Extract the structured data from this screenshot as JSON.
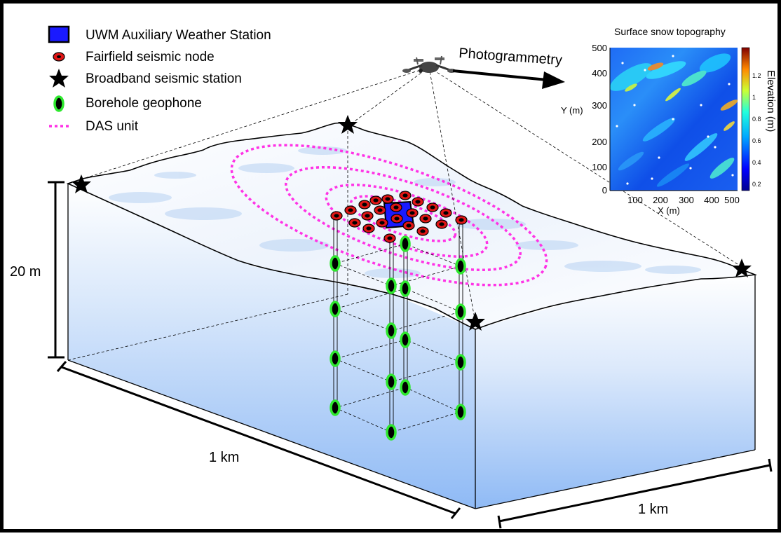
{
  "legend": {
    "items": [
      {
        "key": "weather_station",
        "label": "UWM Auxiliary Weather Station",
        "icon": "blue-square-icon",
        "color": "#1a1aff"
      },
      {
        "key": "seismic_node",
        "label": "Fairfield seismic node",
        "icon": "red-oval-icon",
        "color": "#e01515"
      },
      {
        "key": "broadband",
        "label": "Broadband seismic station",
        "icon": "black-star-icon",
        "color": "#000000"
      },
      {
        "key": "geophone",
        "label": "Borehole geophone",
        "icon": "green-oval-icon",
        "color": "#2ee82e"
      },
      {
        "key": "das",
        "label": "DAS unit",
        "icon": "magenta-dotted-line-icon",
        "color": "#ff33e6"
      }
    ]
  },
  "photogrammetry": {
    "label": "Photogrammetry",
    "icon": "drone-icon"
  },
  "inset": {
    "title": "Surface snow topography",
    "xlabel": "X (m)",
    "ylabel": "Y (m)",
    "colorbar_label": "Elevation (m)",
    "xticks": [
      "100",
      "200",
      "300",
      "400",
      "500"
    ],
    "yticks": [
      "0",
      "100",
      "200",
      "300",
      "400",
      "500"
    ],
    "cticks": [
      "0.2",
      "0.4",
      "0.6",
      "0.8",
      "1",
      "1.2"
    ]
  },
  "dimensions": {
    "depth": "20 m",
    "length_left": "1 km",
    "length_right": "1 km"
  },
  "colors": {
    "box_top": "#ffffff",
    "box_bottom": "#8fbaf5",
    "frame": "#000000"
  }
}
